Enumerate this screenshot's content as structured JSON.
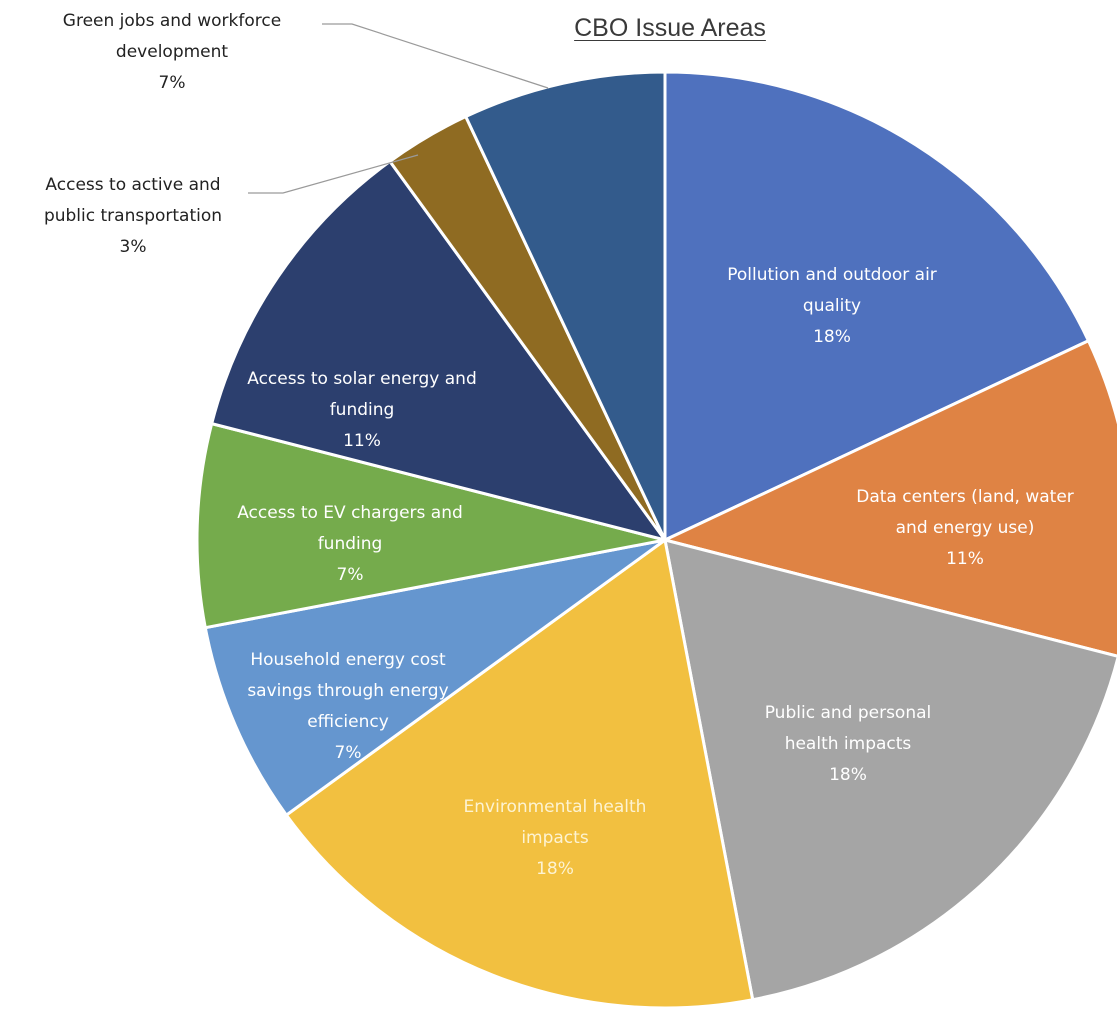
{
  "chart_data": {
    "type": "pie",
    "title": "CBO Issue Areas",
    "slices": [
      {
        "label_lines": [
          "Pollution and outdoor air",
          "quality"
        ],
        "value": 18,
        "display": "18%",
        "color": "#4f71be"
      },
      {
        "label_lines": [
          "Data centers (land, water",
          "and energy use)"
        ],
        "value": 11,
        "display": "11%",
        "color": "#df8344"
      },
      {
        "label_lines": [
          "Public and personal",
          "health impacts"
        ],
        "value": 18,
        "display": "18%",
        "color": "#a5a5a5"
      },
      {
        "label_lines": [
          "Environmental health",
          "impacts"
        ],
        "value": 18,
        "display": "18%",
        "color": "#f2c040"
      },
      {
        "label_lines": [
          "Household energy cost",
          "savings through energy",
          "efficiency"
        ],
        "value": 7,
        "display": "7%",
        "color": "#6596cf"
      },
      {
        "label_lines": [
          "Access to EV chargers and",
          "funding"
        ],
        "value": 7,
        "display": "7%",
        "color": "#75ab4c"
      },
      {
        "label_lines": [
          "Access to solar energy and",
          "funding"
        ],
        "value": 11,
        "display": "11%",
        "color": "#2c3f6e"
      },
      {
        "label_lines": [
          "Access to active and",
          "public transportation"
        ],
        "value": 3,
        "display": "3%",
        "color": "#8f6b22"
      },
      {
        "label_lines": [
          "Green jobs and workforce",
          "development"
        ],
        "value": 7,
        "display": "7%",
        "color": "#335b8c"
      }
    ]
  }
}
